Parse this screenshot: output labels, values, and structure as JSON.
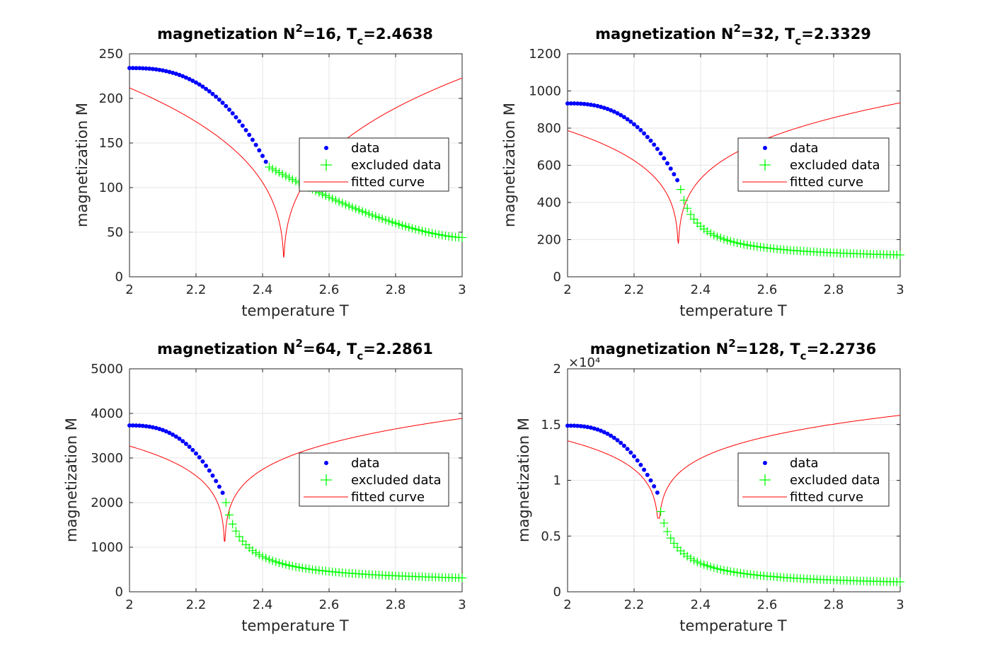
{
  "chart_data": [
    {
      "type": "line",
      "title_prefix": "magnetization N",
      "title_sup": "2",
      "title_mid": "=16, T",
      "title_sub": "c",
      "title_suffix": "=2.4638",
      "N2": 16,
      "Tc": 2.4638,
      "xlabel": "temperature T",
      "ylabel": "magnetization M",
      "xlim": [
        2,
        3
      ],
      "ylim": [
        0,
        250
      ],
      "xticks": [
        2,
        2.2,
        2.4,
        2.6,
        2.8,
        3
      ],
      "xtick_labels": [
        "2",
        "2.2",
        "2.4",
        "2.6",
        "2.8",
        "3"
      ],
      "yticks": [
        0,
        50,
        100,
        150,
        200,
        250
      ],
      "ytick_labels": [
        "0",
        "50",
        "100",
        "150",
        "200",
        "250"
      ],
      "exponent_label": "",
      "grid": true,
      "legend_position": "right-middle",
      "legend": [
        "data",
        "excluded data",
        "fitted curve"
      ],
      "data": {
        "T_end": 2.41,
        "M_start": 234,
        "M_end": 129
      },
      "excluded": {
        "T_start": 2.42,
        "M_start": 123,
        "M_end": 44
      },
      "fit": {
        "amplitude": 380,
        "exponent": 0.35,
        "floor": 22
      }
    },
    {
      "type": "line",
      "title_prefix": "magnetization N",
      "title_sup": "2",
      "title_mid": "=32, T",
      "title_sub": "c",
      "title_suffix": "=2.3329",
      "N2": 32,
      "Tc": 2.3329,
      "xlabel": "temperature T",
      "ylabel": "magnetization M",
      "xlim": [
        2,
        3
      ],
      "ylim": [
        0,
        1200
      ],
      "xticks": [
        2,
        2.2,
        2.4,
        2.6,
        2.8,
        3
      ],
      "xtick_labels": [
        "2",
        "2.2",
        "2.4",
        "2.6",
        "2.8",
        "3"
      ],
      "yticks": [
        0,
        200,
        400,
        600,
        800,
        1000,
        1200
      ],
      "ytick_labels": [
        "0",
        "200",
        "400",
        "600",
        "800",
        "1000",
        "1200"
      ],
      "exponent_label": "",
      "grid": true,
      "legend_position": "right-middle",
      "legend": [
        "data",
        "excluded data",
        "fitted curve"
      ],
      "data": {
        "T_end": 2.33,
        "M_start": 933,
        "M_end": 520
      },
      "excluded": {
        "T_start": 2.34,
        "M_start": 470,
        "M_end": 88
      },
      "fit": {
        "amplitude": 1280,
        "exponent": 0.25,
        "floor": 180
      }
    },
    {
      "type": "line",
      "title_prefix": "magnetization N",
      "title_sup": "2",
      "title_mid": "=64, T",
      "title_sub": "c",
      "title_suffix": "=2.2861",
      "N2": 64,
      "Tc": 2.2861,
      "xlabel": "temperature T",
      "ylabel": "magnetization M",
      "xlim": [
        2,
        3
      ],
      "ylim": [
        0,
        5000
      ],
      "xticks": [
        2,
        2.2,
        2.4,
        2.6,
        2.8,
        3
      ],
      "xtick_labels": [
        "2",
        "2.2",
        "2.4",
        "2.6",
        "2.8",
        "3"
      ],
      "yticks": [
        0,
        1000,
        2000,
        3000,
        4000,
        5000
      ],
      "ytick_labels": [
        "0",
        "1000",
        "2000",
        "3000",
        "4000",
        "5000"
      ],
      "exponent_label": "",
      "grid": true,
      "legend_position": "right-middle",
      "legend": [
        "data",
        "excluded data",
        "fitted curve"
      ],
      "data": {
        "T_end": 2.28,
        "M_start": 3730,
        "M_end": 2220
      },
      "excluded": {
        "T_start": 2.29,
        "M_start": 2000,
        "M_end": 180
      },
      "fit": {
        "amplitude": 4850,
        "exponent": 0.19,
        "floor": 1130
      }
    },
    {
      "type": "line",
      "title_prefix": "magnetization N",
      "title_sup": "2",
      "title_mid": "=128, T",
      "title_sub": "c",
      "title_suffix": "=2.2736",
      "N2": 128,
      "Tc": 2.2736,
      "xlabel": "temperature T",
      "ylabel": "magnetization M",
      "xlim": [
        2,
        3
      ],
      "ylim": [
        0,
        2
      ],
      "xticks": [
        2,
        2.2,
        2.4,
        2.6,
        2.8,
        3
      ],
      "xtick_labels": [
        "2",
        "2.2",
        "2.4",
        "2.6",
        "2.8",
        "3"
      ],
      "yticks": [
        0,
        0.5,
        1,
        1.5,
        2
      ],
      "ytick_labels": [
        "0",
        "0.5",
        "1",
        "1.5",
        "2"
      ],
      "exponent_label": "×10⁴",
      "grid": true,
      "legend_position": "right-middle",
      "legend": [
        "data",
        "excluded data",
        "fitted curve"
      ],
      "data": {
        "T_end": 2.27,
        "M_start": 1.49,
        "M_end": 0.89
      },
      "excluded": {
        "T_start": 2.28,
        "M_start": 0.72,
        "M_end": 0.04
      },
      "fit": {
        "amplitude": 1.9,
        "exponent": 0.16,
        "floor": 0.66
      }
    }
  ],
  "colors": {
    "data": "#0000ff",
    "excluded": "#00ff00",
    "fit": "#ff0000",
    "grid": "#e6e6e6",
    "axis": "#262626"
  }
}
